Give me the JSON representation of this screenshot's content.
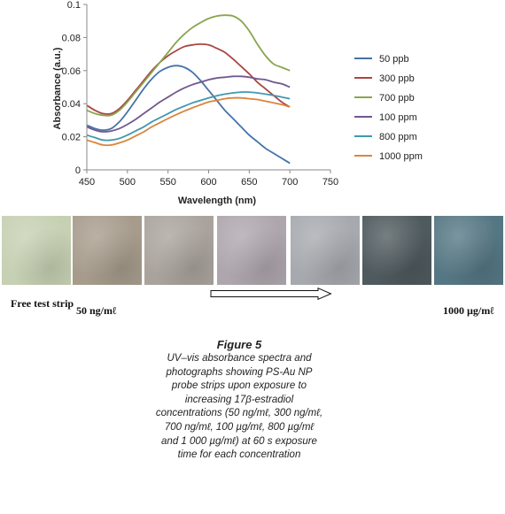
{
  "chart_data": {
    "type": "line",
    "ylabel": "Absorbance (a.u.)",
    "xlabel": "Wavelength (nm)",
    "xlim": [
      450,
      750
    ],
    "ylim": [
      0,
      0.1
    ],
    "xticks": [
      450,
      500,
      550,
      600,
      650,
      700,
      750
    ],
    "yticks": [
      0,
      0.02,
      0.04,
      0.06,
      0.08,
      0.1
    ],
    "ytick_labels": [
      "0",
      "0.02",
      "0.04",
      "0.06",
      "0.08",
      "0.1"
    ],
    "grid": false,
    "legend_position": "right",
    "x": [
      450,
      460,
      470,
      480,
      490,
      500,
      510,
      520,
      530,
      540,
      550,
      560,
      570,
      580,
      590,
      600,
      610,
      620,
      630,
      640,
      650,
      660,
      670,
      680,
      690,
      700
    ],
    "series": [
      {
        "name": "50 ppb",
        "color": "#4573a7",
        "values": [
          0.027,
          0.025,
          0.024,
          0.025,
          0.029,
          0.035,
          0.042,
          0.049,
          0.055,
          0.0595,
          0.062,
          0.063,
          0.062,
          0.059,
          0.054,
          0.048,
          0.042,
          0.036,
          0.031,
          0.026,
          0.021,
          0.017,
          0.013,
          0.01,
          0.007,
          0.004
        ]
      },
      {
        "name": "300 ppb",
        "color": "#aa4643",
        "values": [
          0.039,
          0.036,
          0.034,
          0.034,
          0.037,
          0.042,
          0.048,
          0.054,
          0.06,
          0.065,
          0.069,
          0.072,
          0.0745,
          0.0755,
          0.076,
          0.0755,
          0.0735,
          0.071,
          0.067,
          0.0625,
          0.058,
          0.053,
          0.049,
          0.045,
          0.041,
          0.038
        ]
      },
      {
        "name": "700 ppb",
        "color": "#89a54e",
        "values": [
          0.036,
          0.034,
          0.033,
          0.033,
          0.036,
          0.041,
          0.047,
          0.053,
          0.059,
          0.065,
          0.071,
          0.077,
          0.082,
          0.086,
          0.089,
          0.0915,
          0.093,
          0.0935,
          0.093,
          0.09,
          0.084,
          0.076,
          0.069,
          0.064,
          0.062,
          0.06
        ]
      },
      {
        "name": "100 ppm",
        "color": "#71588f",
        "values": [
          0.026,
          0.024,
          0.023,
          0.0235,
          0.025,
          0.0275,
          0.0305,
          0.034,
          0.0375,
          0.041,
          0.044,
          0.047,
          0.0495,
          0.0515,
          0.053,
          0.0545,
          0.0555,
          0.056,
          0.0565,
          0.0565,
          0.056,
          0.055,
          0.0545,
          0.053,
          0.052,
          0.05
        ]
      },
      {
        "name": "800 ppm",
        "color": "#4198af",
        "values": [
          0.021,
          0.0195,
          0.018,
          0.018,
          0.019,
          0.021,
          0.0235,
          0.026,
          0.029,
          0.0315,
          0.034,
          0.0365,
          0.0385,
          0.0405,
          0.042,
          0.0435,
          0.0448,
          0.0458,
          0.0465,
          0.047,
          0.047,
          0.0465,
          0.0458,
          0.045,
          0.044,
          0.043
        ]
      },
      {
        "name": "1000 ppm",
        "color": "#db843d",
        "values": [
          0.018,
          0.0165,
          0.015,
          0.015,
          0.0163,
          0.018,
          0.0205,
          0.023,
          0.026,
          0.0285,
          0.031,
          0.0333,
          0.0355,
          0.0375,
          0.0393,
          0.041,
          0.042,
          0.043,
          0.0435,
          0.0435,
          0.043,
          0.0425,
          0.0415,
          0.0405,
          0.0395,
          0.038
        ]
      }
    ]
  },
  "strips": {
    "colors": [
      "#c6d0b2",
      "#a79c8c",
      "#aaa39d",
      "#aea6ad",
      "#a6a9ae",
      "#4f5a5e",
      "#557783"
    ],
    "labels": {
      "free_test_strip": "Free test strip",
      "low_concentration": "50 ng/mℓ",
      "high_concentration": "1000 µg/mℓ"
    }
  },
  "figure": {
    "title": "Figure 5",
    "caption": "UV–vis absorbance spectra and photographs showing PS-Au NP probe strips upon exposure to increasing 17β-estradiol concentrations (50 ng/mℓ, 300 ng/mℓ, 700 ng/mℓ, 100 µg/mℓ, 800 µg/mℓ and 1 000 µg/mℓ) at 60 s exposure time for each concentration"
  }
}
